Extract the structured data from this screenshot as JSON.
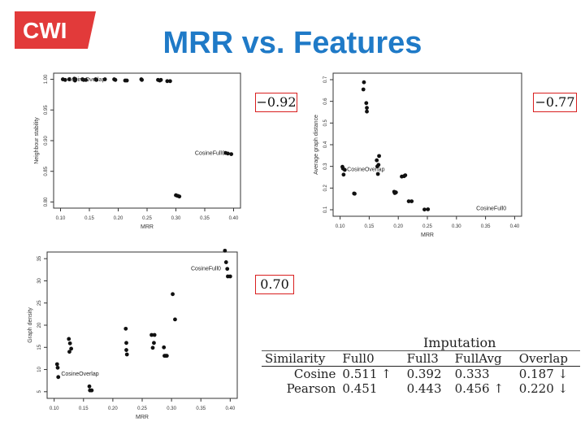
{
  "slide": {
    "logo_text": "CWI",
    "title": "MRR vs. Features"
  },
  "colors": {
    "title": "#1f7ac7",
    "logo": "#e23a3a",
    "box_border": "#d91f1f"
  },
  "correlations": {
    "top_left": "−0.92",
    "top_right": "−0.77",
    "bottom_left": "0.70"
  },
  "chart_data": [
    {
      "type": "scatter",
      "xlabel": "MRR",
      "ylabel": "Neighbour stability",
      "xlim": [
        0.1,
        0.4
      ],
      "ylim": [
        0.8,
        1.0
      ],
      "xticks": [
        0.1,
        0.15,
        0.2,
        0.25,
        0.3,
        0.35,
        0.4
      ],
      "xtick_labels": [
        "0.10",
        "0.15",
        "0.20",
        "0.25",
        "0.30",
        "0.35",
        "0.40"
      ],
      "yticks": [
        0.8,
        0.85,
        0.9,
        0.95,
        1.0
      ],
      "ytick_labels": [
        "0.80",
        "0.85",
        "0.90",
        "0.95",
        "1.00"
      ],
      "annotations": [
        {
          "text": "CosineOverlap",
          "x": 0.112,
          "y": 0.997
        },
        {
          "text": "CosineFull0",
          "x": 0.333,
          "y": 0.877
        }
      ],
      "points": [
        [
          0.104,
          1.0
        ],
        [
          0.108,
          0.999
        ],
        [
          0.115,
          1.0
        ],
        [
          0.124,
          1.001
        ],
        [
          0.125,
          0.998
        ],
        [
          0.126,
          1.0
        ],
        [
          0.138,
          1.0
        ],
        [
          0.14,
          0.999
        ],
        [
          0.144,
          0.999
        ],
        [
          0.161,
          1.0
        ],
        [
          0.162,
          0.999
        ],
        [
          0.177,
          1.0
        ],
        [
          0.193,
          1.0
        ],
        [
          0.195,
          0.999
        ],
        [
          0.212,
          0.998
        ],
        [
          0.215,
          0.998
        ],
        [
          0.24,
          1.0
        ],
        [
          0.241,
          0.999
        ],
        [
          0.269,
          0.999
        ],
        [
          0.272,
          0.998
        ],
        [
          0.274,
          0.999
        ],
        [
          0.285,
          0.997
        ],
        [
          0.29,
          0.997
        ],
        [
          0.3,
          0.811
        ],
        [
          0.303,
          0.81
        ],
        [
          0.306,
          0.809
        ],
        [
          0.386,
          0.88
        ],
        [
          0.39,
          0.879
        ],
        [
          0.396,
          0.878
        ]
      ]
    },
    {
      "type": "scatter",
      "xlabel": "MRR",
      "ylabel": "Average graph distance",
      "xlim": [
        0.1,
        0.4
      ],
      "ylim": [
        0.1,
        0.7
      ],
      "xticks": [
        0.1,
        0.15,
        0.2,
        0.25,
        0.3,
        0.35,
        0.4
      ],
      "xtick_labels": [
        "0.10",
        "0.15",
        "0.20",
        "0.25",
        "0.30",
        "0.35",
        "0.40"
      ],
      "yticks": [
        0.1,
        0.2,
        0.3,
        0.4,
        0.5,
        0.6,
        0.7
      ],
      "ytick_labels": [
        "0.1",
        "0.2",
        "0.3",
        "0.4",
        "0.5",
        "0.6",
        "0.7"
      ],
      "annotations": [
        {
          "text": "CosineOverlap",
          "x": 0.112,
          "y": 0.278
        },
        {
          "text": "CosineFull0",
          "x": 0.334,
          "y": 0.098
        }
      ],
      "points": [
        [
          0.104,
          0.298
        ],
        [
          0.105,
          0.29
        ],
        [
          0.106,
          0.262
        ],
        [
          0.108,
          0.284
        ],
        [
          0.124,
          0.175
        ],
        [
          0.125,
          0.174
        ],
        [
          0.14,
          0.655
        ],
        [
          0.141,
          0.688
        ],
        [
          0.145,
          0.592
        ],
        [
          0.146,
          0.57
        ],
        [
          0.146,
          0.553
        ],
        [
          0.163,
          0.328
        ],
        [
          0.164,
          0.3
        ],
        [
          0.165,
          0.265
        ],
        [
          0.166,
          0.307
        ],
        [
          0.167,
          0.348
        ],
        [
          0.193,
          0.183
        ],
        [
          0.194,
          0.177
        ],
        [
          0.196,
          0.18
        ],
        [
          0.206,
          0.253
        ],
        [
          0.21,
          0.255
        ],
        [
          0.212,
          0.259
        ],
        [
          0.218,
          0.139
        ],
        [
          0.223,
          0.139
        ],
        [
          0.245,
          0.101
        ],
        [
          0.251,
          0.102
        ]
      ]
    },
    {
      "type": "scatter",
      "xlabel": "MRR",
      "ylabel": "Graph density",
      "xlim": [
        0.1,
        0.4
      ],
      "ylim": [
        5,
        35
      ],
      "xticks": [
        0.1,
        0.15,
        0.2,
        0.25,
        0.3,
        0.35,
        0.4
      ],
      "xtick_labels": [
        "0.10",
        "0.15",
        "0.20",
        "0.25",
        "0.30",
        "0.35",
        "0.40"
      ],
      "yticks": [
        5,
        10,
        15,
        20,
        25,
        30,
        35
      ],
      "ytick_labels": [
        "5",
        "10",
        "15",
        "20",
        "25",
        "30",
        "35"
      ],
      "annotations": [
        {
          "text": "CosineOverlap",
          "x": 0.112,
          "y": 8.6
        },
        {
          "text": "CosineFull0",
          "x": 0.333,
          "y": 32.4
        }
      ],
      "points": [
        [
          0.105,
          11.2
        ],
        [
          0.106,
          10.4
        ],
        [
          0.107,
          8.3
        ],
        [
          0.125,
          16.9
        ],
        [
          0.126,
          14.0
        ],
        [
          0.127,
          15.9
        ],
        [
          0.129,
          14.7
        ],
        [
          0.16,
          6.2
        ],
        [
          0.161,
          5.3
        ],
        [
          0.164,
          5.3
        ],
        [
          0.222,
          19.2
        ],
        [
          0.223,
          16.0
        ],
        [
          0.223,
          14.4
        ],
        [
          0.224,
          13.4
        ],
        [
          0.266,
          17.8
        ],
        [
          0.268,
          14.9
        ],
        [
          0.27,
          16.0
        ],
        [
          0.271,
          17.8
        ],
        [
          0.287,
          15.0
        ],
        [
          0.288,
          13.1
        ],
        [
          0.29,
          13.1
        ],
        [
          0.292,
          13.1
        ],
        [
          0.302,
          27.0
        ],
        [
          0.306,
          21.3
        ],
        [
          0.391,
          36.8
        ],
        [
          0.393,
          34.2
        ],
        [
          0.395,
          32.7
        ],
        [
          0.396,
          31.0
        ],
        [
          0.4,
          31.0
        ]
      ]
    }
  ],
  "results_table": {
    "group_header": "Imputation",
    "row_header": "Similarity",
    "columns": [
      "Full0",
      "Full3",
      "FullAvg",
      "Overlap"
    ],
    "rows": [
      {
        "label": "Cosine",
        "cells": [
          "0.511 ↑",
          "0.392",
          "0.333",
          "0.187 ↓"
        ]
      },
      {
        "label": "Pearson",
        "cells": [
          "0.451",
          "0.443",
          "0.456 ↑",
          "0.220 ↓"
        ]
      }
    ]
  }
}
